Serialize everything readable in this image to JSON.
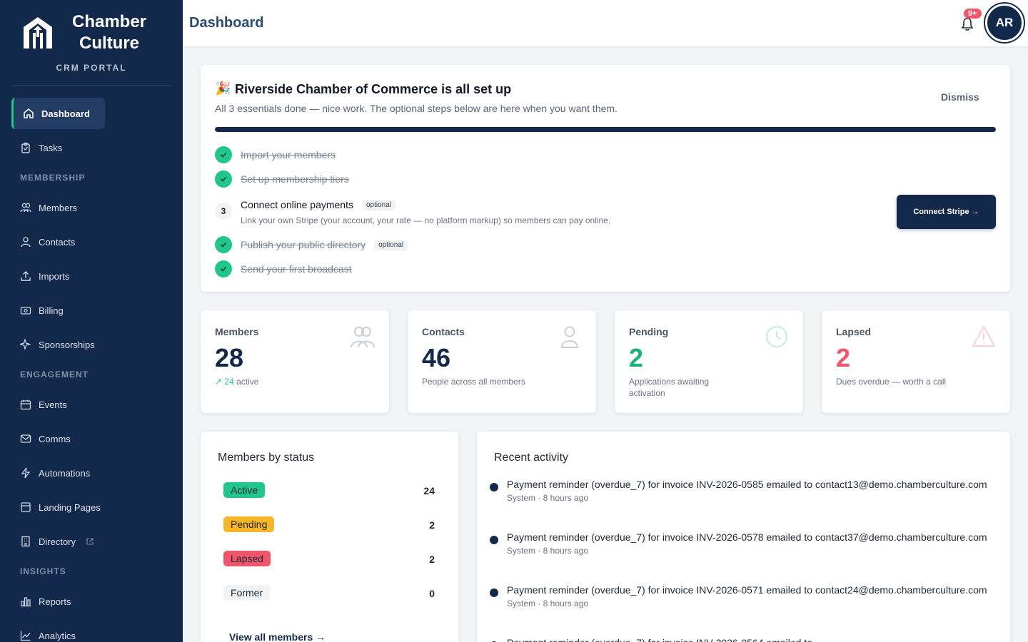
{
  "brand": {
    "title": "Chamber Culture",
    "subtitle": "CRM PORTAL"
  },
  "nav": {
    "dashboard": "Dashboard",
    "tasks": "Tasks",
    "section_membership": "MEMBERSHIP",
    "members": "Members",
    "contacts": "Contacts",
    "imports": "Imports",
    "billing": "Billing",
    "sponsorships": "Sponsorships",
    "section_engagement": "ENGAGEMENT",
    "events": "Events",
    "comms": "Comms",
    "automations": "Automations",
    "landing_pages": "Landing Pages",
    "directory": "Directory",
    "section_insights": "INSIGHTS",
    "reports": "Reports",
    "analytics": "Analytics"
  },
  "header": {
    "title": "Dashboard",
    "notifications": "9+",
    "avatar": "AR"
  },
  "setup": {
    "emoji": "🎉",
    "title": "Riverside Chamber of Commerce is all set up",
    "subtitle": "All 3 essentials done — nice work. The optional steps below are here when you want them.",
    "dismiss": "Dismiss",
    "progress": 1.0,
    "steps": [
      {
        "label": "Import your members",
        "done": true
      },
      {
        "label": "Set up membership tiers",
        "done": true
      },
      {
        "number": "3",
        "label": "Connect online payments",
        "tag": "optional",
        "done": false,
        "description": "Link your own Stripe (your account, your rate — no platform markup) so members can pay online."
      },
      {
        "label": "Publish your public directory",
        "tag": "optional",
        "done": true
      },
      {
        "label": "Send your first broadcast",
        "done": true
      }
    ],
    "cta": "Connect Stripe →"
  },
  "stats": [
    {
      "label": "Members",
      "value": "28",
      "sub_value": "24",
      "sub": "active",
      "icon": "users-icon",
      "color": "#13294b"
    },
    {
      "label": "Contacts",
      "value": "46",
      "sub": "People across all members",
      "icon": "user-icon",
      "color": "#13294b"
    },
    {
      "label": "Pending",
      "value": "2",
      "sub": "Applications awaiting activation",
      "icon": "clock-icon",
      "color": "#1bb07d"
    },
    {
      "label": "Lapsed",
      "value": "2",
      "sub": "Dues overdue — worth a call",
      "icon": "warning-icon",
      "color": "#f0566b"
    }
  ],
  "members_by_status": {
    "title": "Members by status",
    "rows": [
      {
        "label": "Active",
        "count": "24",
        "bg": "#22c58b"
      },
      {
        "label": "Pending",
        "count": "2",
        "bg": "#f7b529"
      },
      {
        "label": "Lapsed",
        "count": "2",
        "bg": "#f0566b"
      },
      {
        "label": "Former",
        "count": "0",
        "bg": "#f1f3f5"
      }
    ],
    "view_all": "View all members →"
  },
  "activity": {
    "title": "Recent activity",
    "items": [
      {
        "text": "Payment reminder (overdue_7) for invoice INV-2026-0585 emailed to contact13@demo.chamberculture.com",
        "meta": "System · 8 hours ago"
      },
      {
        "text": "Payment reminder (overdue_7) for invoice INV-2026-0578 emailed to contact37@demo.chamberculture.com",
        "meta": "System · 8 hours ago"
      },
      {
        "text": "Payment reminder (overdue_7) for invoice INV-2026-0571 emailed to contact24@demo.chamberculture.com",
        "meta": "System · 8 hours ago"
      },
      {
        "text": "Payment reminder (overdue_7) for invoice INV-2026-0564 emailed to",
        "meta": ""
      }
    ]
  }
}
